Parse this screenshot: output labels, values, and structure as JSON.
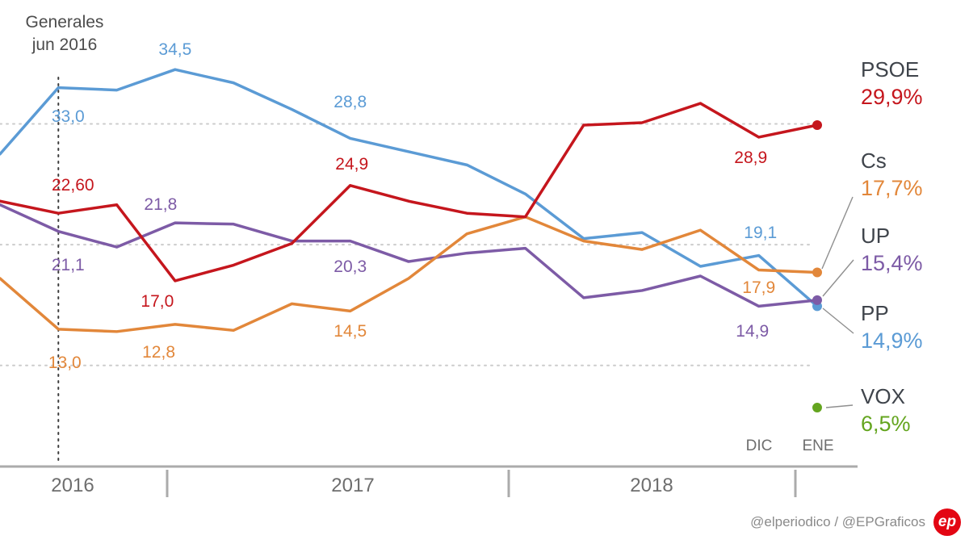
{
  "annotation": {
    "line1": "Generales",
    "line2": "jun 2016"
  },
  "x_axis": {
    "years": [
      "2016",
      "2017",
      "2018"
    ],
    "month_labels": [
      "DIC",
      "ENE"
    ]
  },
  "legend": {
    "items": [
      {
        "party": "PSOE",
        "value": "29,9%",
        "color": "#c5161d"
      },
      {
        "party": "Cs",
        "value": "17,7%",
        "color": "#e2873a"
      },
      {
        "party": "UP",
        "value": "15,4%",
        "color": "#7d5ba6"
      },
      {
        "party": "PP",
        "value": "14,9%",
        "color": "#5b9bd5"
      },
      {
        "party": "VOX",
        "value": "6,5%",
        "color": "#64a51f"
      }
    ]
  },
  "footer": {
    "credit": "@elperiodico / @EPGraficos",
    "logo_text": "ep"
  },
  "chart_data": {
    "type": "line",
    "ylim": [
      0,
      40
    ],
    "gridlines": [
      10,
      20,
      30
    ],
    "grid": "dotted horizontal lines at 10, 20, 30",
    "legend_position": "right",
    "election_marker": {
      "label": "Generales jun 2016",
      "index": 1
    },
    "series": [
      {
        "name": "PP",
        "color": "#5b9bd5",
        "end_dot": true,
        "values": [
          27.5,
          33.0,
          32.8,
          34.5,
          33.4,
          31.2,
          28.8,
          27.7,
          26.6,
          24.2,
          20.5,
          21.0,
          18.2,
          19.1,
          14.9
        ],
        "point_labels": [
          {
            "index": 1,
            "text": "33,0",
            "dx": 12,
            "dy": 36
          },
          {
            "index": 3,
            "text": "34,5",
            "dx": 0,
            "dy": -24
          },
          {
            "index": 6,
            "text": "28,8",
            "dx": 0,
            "dy": -44
          },
          {
            "index": 13,
            "text": "19,1",
            "dx": 2,
            "dy": -28
          }
        ]
      },
      {
        "name": "UP",
        "color": "#7d5ba6",
        "end_dot": true,
        "values": [
          23.3,
          21.1,
          19.8,
          21.8,
          21.7,
          20.3,
          20.3,
          18.6,
          19.3,
          19.7,
          15.6,
          16.2,
          17.4,
          14.9,
          15.4
        ],
        "point_labels": [
          {
            "index": 1,
            "text": "21,1",
            "dx": 12,
            "dy": 42
          },
          {
            "index": 3,
            "text": "21,8",
            "dx": -18,
            "dy": -22
          },
          {
            "index": 6,
            "text": "20,3",
            "dx": 0,
            "dy": 32
          },
          {
            "index": 13,
            "text": "14,9",
            "dx": -8,
            "dy": 32
          }
        ]
      },
      {
        "name": "Cs",
        "color": "#e2873a",
        "end_dot": true,
        "values": [
          17.2,
          13.0,
          12.8,
          13.4,
          12.9,
          15.1,
          14.5,
          17.2,
          20.9,
          22.3,
          20.3,
          19.6,
          21.2,
          17.9,
          17.7
        ],
        "point_labels": [
          {
            "index": 1,
            "text": "13,0",
            "dx": 8,
            "dy": 42
          },
          {
            "index": 2,
            "text": "12,8",
            "dx": 52,
            "dy": 26
          },
          {
            "index": 6,
            "text": "14,5",
            "dx": 0,
            "dy": 26
          },
          {
            "index": 13,
            "text": "17,9",
            "dx": 0,
            "dy": 22
          }
        ]
      },
      {
        "name": "PSOE",
        "color": "#c5161d",
        "end_dot": true,
        "values": [
          23.6,
          22.6,
          23.3,
          17.0,
          18.3,
          20.1,
          24.9,
          23.6,
          22.6,
          22.3,
          29.9,
          30.1,
          31.7,
          28.9,
          29.9
        ],
        "point_labels": [
          {
            "index": 1,
            "text": "22,60",
            "dx": 18,
            "dy": -34
          },
          {
            "index": 3,
            "text": "17,0",
            "dx": -22,
            "dy": 26
          },
          {
            "index": 6,
            "text": "24,9",
            "dx": 2,
            "dy": -26
          },
          {
            "index": 13,
            "text": "28,9",
            "dx": -10,
            "dy": 26
          }
        ]
      },
      {
        "name": "VOX",
        "color": "#64a51f",
        "end_dot": true,
        "values": [
          null,
          null,
          null,
          null,
          null,
          null,
          null,
          null,
          null,
          null,
          null,
          null,
          null,
          null,
          6.5
        ],
        "point_labels": []
      }
    ]
  }
}
